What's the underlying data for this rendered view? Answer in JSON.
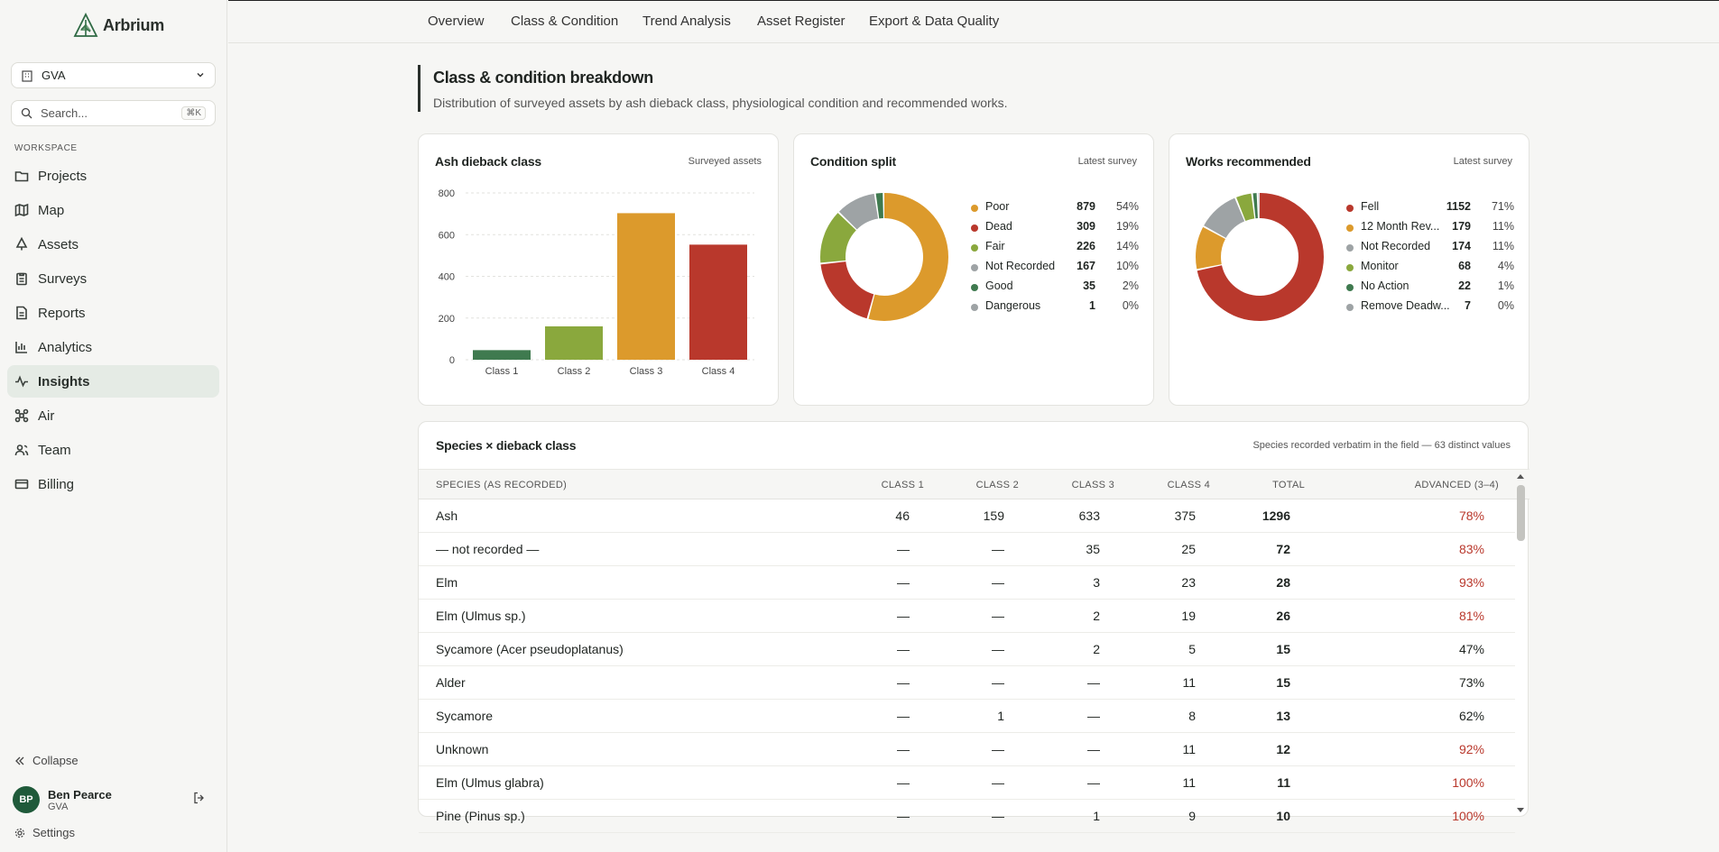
{
  "app": {
    "name": "Arbrium"
  },
  "sidebar": {
    "org": "GVA",
    "search_placeholder": "Search...",
    "search_shortcut": "⌘K",
    "section_label": "WORKSPACE",
    "items": [
      {
        "label": "Projects",
        "icon": "folder-icon"
      },
      {
        "label": "Map",
        "icon": "map-icon"
      },
      {
        "label": "Assets",
        "icon": "tree-icon"
      },
      {
        "label": "Surveys",
        "icon": "clipboard-icon"
      },
      {
        "label": "Reports",
        "icon": "file-icon"
      },
      {
        "label": "Analytics",
        "icon": "bar-chart-icon"
      },
      {
        "label": "Insights",
        "icon": "activity-icon",
        "active": true
      },
      {
        "label": "Air",
        "icon": "drone-icon"
      },
      {
        "label": "Team",
        "icon": "users-icon"
      },
      {
        "label": "Billing",
        "icon": "card-icon"
      }
    ],
    "collapse_label": "Collapse",
    "user": {
      "initials": "BP",
      "name": "Ben Pearce",
      "org": "GVA"
    },
    "settings_label": "Settings"
  },
  "topnav": {
    "tabs": [
      "Overview",
      "Class & Condition",
      "Trend Analysis",
      "Asset Register",
      "Export & Data Quality"
    ]
  },
  "page": {
    "title": "Class & condition breakdown",
    "description": "Distribution of surveyed assets by ash dieback class, physiological condition and recommended works."
  },
  "colors": {
    "class1": "#3f7a4f",
    "class2": "#8aa83d",
    "class3": "#dc9a2c",
    "class4": "#b9382c",
    "gray": "#9ea3a5",
    "accent_red": "#b9382c"
  },
  "charts": {
    "ash": {
      "title": "Ash dieback class",
      "subtitle": "Surveyed assets"
    },
    "condition": {
      "title": "Condition split",
      "subtitle": "Latest survey"
    },
    "works": {
      "title": "Works recommended",
      "subtitle": "Latest survey"
    }
  },
  "chart_data": [
    {
      "type": "bar",
      "title": "Ash dieback class",
      "categories": [
        "Class 1",
        "Class 2",
        "Class 3",
        "Class 4"
      ],
      "values": [
        46,
        160,
        703,
        552
      ],
      "colors": [
        "#3f7a4f",
        "#8aa83d",
        "#dc9a2c",
        "#b9382c"
      ],
      "ylim": [
        0,
        800
      ],
      "yticks": [
        0,
        200,
        400,
        600,
        800
      ],
      "grid": true
    },
    {
      "type": "pie",
      "title": "Condition split",
      "slices": [
        {
          "label": "Poor",
          "count": 879,
          "pct": "54%",
          "color": "#dc9a2c"
        },
        {
          "label": "Dead",
          "count": 309,
          "pct": "19%",
          "color": "#b9382c"
        },
        {
          "label": "Fair",
          "count": 226,
          "pct": "14%",
          "color": "#8aa83d"
        },
        {
          "label": "Not Recorded",
          "count": 167,
          "pct": "10%",
          "color": "#9ea3a5"
        },
        {
          "label": "Good",
          "count": 35,
          "pct": "2%",
          "color": "#3f7a4f"
        },
        {
          "label": "Dangerous",
          "count": 1,
          "pct": "0%",
          "color": "#9ea3a5"
        }
      ]
    },
    {
      "type": "pie",
      "title": "Works recommended",
      "slices": [
        {
          "label": "Fell",
          "count": 1152,
          "pct": "71%",
          "color": "#b9382c"
        },
        {
          "label": "12 Month Rev...",
          "count": 179,
          "pct": "11%",
          "color": "#dc9a2c"
        },
        {
          "label": "Not Recorded",
          "count": 174,
          "pct": "11%",
          "color": "#9ea3a5"
        },
        {
          "label": "Monitor",
          "count": 68,
          "pct": "4%",
          "color": "#8aa83d"
        },
        {
          "label": "No Action",
          "count": 22,
          "pct": "1%",
          "color": "#3f7a4f"
        },
        {
          "label": "Remove Deadw...",
          "count": 7,
          "pct": "0%",
          "color": "#9ea3a5"
        }
      ]
    }
  ],
  "table": {
    "title": "Species × dieback class",
    "subtitle": "Species recorded verbatim in the field — 63 distinct values",
    "columns": [
      "SPECIES (AS RECORDED)",
      "CLASS 1",
      "CLASS 2",
      "CLASS 3",
      "CLASS 4",
      "TOTAL",
      "ADVANCED (3–4)"
    ],
    "rows": [
      {
        "species": "Ash",
        "c1": "46",
        "c2": "159",
        "c3": "633",
        "c4": "375",
        "total": "1296",
        "adv": "78%",
        "adv_red": true
      },
      {
        "species": "— not recorded —",
        "c1": "—",
        "c2": "—",
        "c3": "35",
        "c4": "25",
        "total": "72",
        "adv": "83%",
        "adv_red": true
      },
      {
        "species": "Elm",
        "c1": "—",
        "c2": "—",
        "c3": "3",
        "c4": "23",
        "total": "28",
        "adv": "93%",
        "adv_red": true
      },
      {
        "species": "Elm (Ulmus sp.)",
        "c1": "—",
        "c2": "—",
        "c3": "2",
        "c4": "19",
        "total": "26",
        "adv": "81%",
        "adv_red": true
      },
      {
        "species": "Sycamore (Acer pseudoplatanus)",
        "c1": "—",
        "c2": "—",
        "c3": "2",
        "c4": "5",
        "total": "15",
        "adv": "47%",
        "adv_red": false
      },
      {
        "species": "Alder",
        "c1": "—",
        "c2": "—",
        "c3": "—",
        "c4": "11",
        "total": "15",
        "adv": "73%",
        "adv_red": false
      },
      {
        "species": "Sycamore",
        "c1": "—",
        "c2": "1",
        "c3": "—",
        "c4": "8",
        "total": "13",
        "adv": "62%",
        "adv_red": false
      },
      {
        "species": "Unknown",
        "c1": "—",
        "c2": "—",
        "c3": "—",
        "c4": "11",
        "total": "12",
        "adv": "92%",
        "adv_red": true
      },
      {
        "species": "Elm (Ulmus glabra)",
        "c1": "—",
        "c2": "—",
        "c3": "—",
        "c4": "11",
        "total": "11",
        "adv": "100%",
        "adv_red": true
      },
      {
        "species": "Pine (Pinus sp.)",
        "c1": "—",
        "c2": "—",
        "c3": "1",
        "c4": "9",
        "total": "10",
        "adv": "100%",
        "adv_red": true
      }
    ]
  }
}
